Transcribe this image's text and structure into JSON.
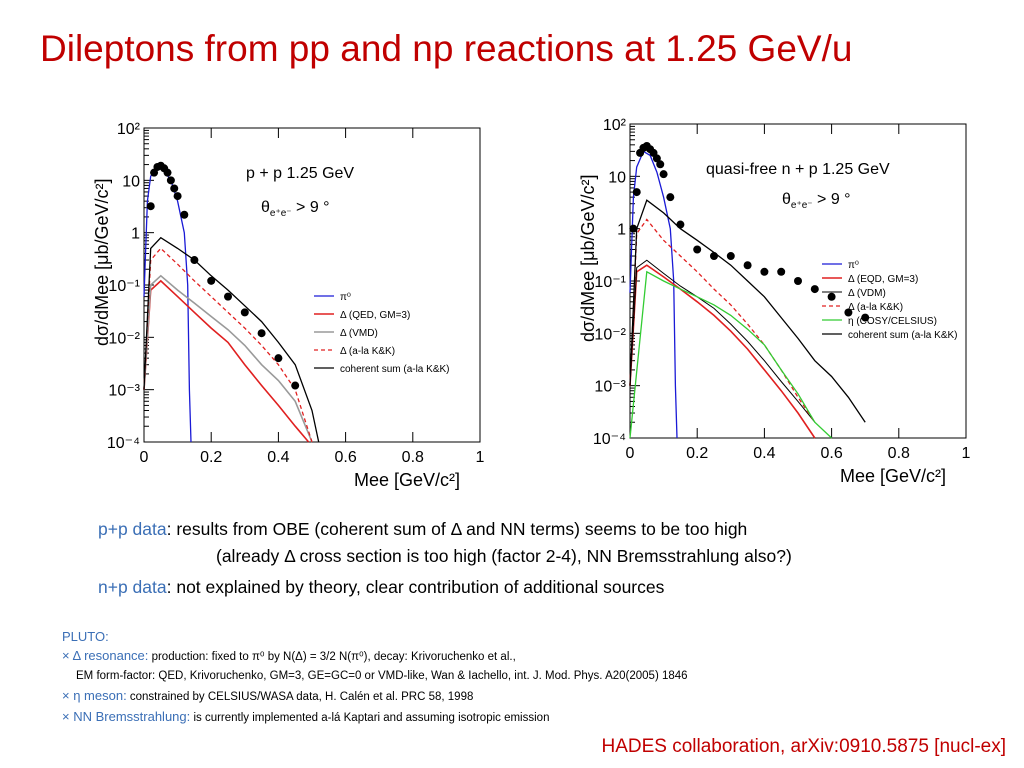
{
  "slide": {
    "title": "Dileptons from pp and np reactions at 1.25 GeV/u"
  },
  "colors": {
    "title": "#c00000",
    "accent_blue": "#3b6fb6",
    "pi0": "#1a1ad6",
    "delta_qed": "#e02020",
    "delta_vdm": "#9a9a9a",
    "delta_alakk": "#e02020",
    "eta": "#33cc33",
    "coherent": "#000000"
  },
  "left_plot": {
    "annotation1": "p + p  1.25 GeV",
    "annotation2_theta": "θ",
    "annotation2_sub": "e⁺e⁻",
    "annotation2_rest": " > 9 °",
    "ylabel": "dσ/dMee [μb/GeV/c²]",
    "xlabel": "Mee [GeV/c²]",
    "xticks": [
      "0",
      "0.2",
      "0.4",
      "0.6",
      "0.8",
      "1"
    ],
    "yticks": [
      "10²",
      "10",
      "1",
      "10⁻¹",
      "10⁻²",
      "10⁻³",
      "10⁻⁴"
    ],
    "legend": [
      "π⁰",
      "Δ (QED, GM=3)",
      "Δ (VMD)",
      "Δ (a-la K&K)",
      "coherent sum (a-la K&K)"
    ]
  },
  "right_plot": {
    "annotation1": "quasi-free n + p  1.25 GeV",
    "annotation2_theta": "θ",
    "annotation2_sub": "e⁺e⁻",
    "annotation2_rest": " > 9 °",
    "ylabel": "dσ/dMee [μb/GeV/c²]",
    "xlabel": "Mee [GeV/c²]",
    "xticks": [
      "0",
      "0.2",
      "0.4",
      "0.6",
      "0.8",
      "1"
    ],
    "yticks": [
      "10²",
      "10",
      "1",
      "10⁻¹",
      "10⁻²",
      "10⁻³",
      "10⁻⁴"
    ],
    "legend": [
      "π⁰",
      "Δ (EQD, GM=3)",
      "Δ (VDM)",
      "Δ (a-la K&K)",
      "η (COSY/CELSIUS)",
      "coherent sum (a-la K&K)"
    ]
  },
  "chart_data": [
    {
      "type": "scatter",
      "title": "p + p 1.25 GeV",
      "xlabel": "Mee [GeV/c²]",
      "ylabel": "dσ/dMee [μb/GeV/c²]",
      "xlim": [
        0,
        1
      ],
      "ylim": [
        0.0001,
        100
      ],
      "yscale": "log",
      "series": [
        {
          "name": "data",
          "x": [
            0.02,
            0.03,
            0.04,
            0.05,
            0.06,
            0.07,
            0.08,
            0.09,
            0.1,
            0.12,
            0.15,
            0.2,
            0.25,
            0.3,
            0.35,
            0.4,
            0.45
          ],
          "y": [
            3.2,
            14,
            18,
            19,
            17,
            14,
            10,
            7,
            5,
            2.2,
            0.3,
            0.12,
            0.06,
            0.03,
            0.012,
            0.004,
            0.0012
          ]
        },
        {
          "name": "π⁰",
          "x": [
            0.0,
            0.01,
            0.02,
            0.04,
            0.06,
            0.08,
            0.1,
            0.12,
            0.13,
            0.135,
            0.14
          ],
          "y": [
            0.06,
            4,
            12,
            18,
            15,
            10,
            4,
            1,
            0.1,
            0.001,
            0.0001
          ]
        },
        {
          "name": "Δ (QED, GM=3)",
          "x": [
            0.0,
            0.02,
            0.05,
            0.1,
            0.15,
            0.2,
            0.25,
            0.3,
            0.35,
            0.4,
            0.45,
            0.49
          ],
          "y": [
            0.001,
            0.08,
            0.12,
            0.06,
            0.03,
            0.015,
            0.008,
            0.003,
            0.0012,
            0.0005,
            0.0002,
            0.0001
          ]
        },
        {
          "name": "Δ (VMD)",
          "x": [
            0.0,
            0.02,
            0.05,
            0.1,
            0.15,
            0.2,
            0.25,
            0.3,
            0.35,
            0.4,
            0.45,
            0.5
          ],
          "y": [
            0.001,
            0.1,
            0.15,
            0.08,
            0.045,
            0.025,
            0.014,
            0.007,
            0.003,
            0.0015,
            0.0006,
            0.0001
          ]
        },
        {
          "name": "Δ (a-la K&K)",
          "x": [
            0.0,
            0.02,
            0.05,
            0.1,
            0.15,
            0.2,
            0.25,
            0.3,
            0.35,
            0.4,
            0.45,
            0.5
          ],
          "y": [
            0.001,
            0.3,
            0.5,
            0.25,
            0.12,
            0.06,
            0.03,
            0.015,
            0.007,
            0.003,
            0.001,
            0.0001
          ]
        },
        {
          "name": "coherent sum (a-la K&K)",
          "x": [
            0.0,
            0.02,
            0.05,
            0.1,
            0.15,
            0.2,
            0.25,
            0.3,
            0.35,
            0.4,
            0.45,
            0.5,
            0.52
          ],
          "y": [
            0.001,
            0.5,
            0.8,
            0.5,
            0.3,
            0.15,
            0.08,
            0.04,
            0.02,
            0.008,
            0.003,
            0.0004,
            0.0001
          ]
        }
      ]
    },
    {
      "type": "scatter",
      "title": "quasi-free n + p 1.25 GeV",
      "xlabel": "Mee [GeV/c²]",
      "ylabel": "dσ/dMee [μb/GeV/c²]",
      "xlim": [
        0,
        1
      ],
      "ylim": [
        0.0001,
        100
      ],
      "yscale": "log",
      "series": [
        {
          "name": "data",
          "x": [
            0.01,
            0.02,
            0.03,
            0.04,
            0.05,
            0.06,
            0.07,
            0.08,
            0.09,
            0.1,
            0.12,
            0.15,
            0.2,
            0.25,
            0.3,
            0.35,
            0.4,
            0.45,
            0.5,
            0.55,
            0.6,
            0.65,
            0.7
          ],
          "y": [
            1,
            5,
            28,
            35,
            38,
            33,
            28,
            22,
            17,
            11,
            4,
            1.2,
            0.4,
            0.3,
            0.3,
            0.2,
            0.15,
            0.15,
            0.1,
            0.07,
            0.05,
            0.025,
            0.02
          ]
        },
        {
          "name": "π⁰",
          "x": [
            0.0,
            0.01,
            0.02,
            0.04,
            0.06,
            0.08,
            0.1,
            0.12,
            0.13,
            0.135,
            0.14
          ],
          "y": [
            0.06,
            4,
            15,
            30,
            25,
            12,
            4,
            1,
            0.1,
            0.001,
            0.0001
          ]
        },
        {
          "name": "Δ (EQD, GM=3)",
          "x": [
            0.0,
            0.02,
            0.05,
            0.1,
            0.15,
            0.2,
            0.25,
            0.3,
            0.35,
            0.4,
            0.45,
            0.5,
            0.55
          ],
          "y": [
            0.001,
            0.15,
            0.2,
            0.12,
            0.07,
            0.04,
            0.022,
            0.011,
            0.005,
            0.002,
            0.0008,
            0.0003,
            0.0001
          ]
        },
        {
          "name": "Δ (VDM)",
          "x": [
            0.0,
            0.02,
            0.05,
            0.1,
            0.15,
            0.2,
            0.25,
            0.3,
            0.35,
            0.4,
            0.45,
            0.5,
            0.55
          ],
          "y": [
            0.001,
            0.18,
            0.25,
            0.14,
            0.08,
            0.05,
            0.03,
            0.015,
            0.007,
            0.003,
            0.0012,
            0.0005,
            0.0002
          ]
        },
        {
          "name": "Δ (a-la K&K)",
          "x": [
            0.0,
            0.02,
            0.05,
            0.1,
            0.15,
            0.2,
            0.25,
            0.3,
            0.35,
            0.4,
            0.45,
            0.5,
            0.55
          ],
          "y": [
            0.001,
            0.8,
            1.5,
            0.6,
            0.3,
            0.15,
            0.07,
            0.035,
            0.015,
            0.006,
            0.002,
            0.0006,
            0.0002
          ]
        },
        {
          "name": "η (COSY/CELSIUS)",
          "x": [
            0.0,
            0.05,
            0.1,
            0.15,
            0.2,
            0.25,
            0.3,
            0.35,
            0.4,
            0.45,
            0.5,
            0.55,
            0.6
          ],
          "y": [
            0.0001,
            0.15,
            0.1,
            0.07,
            0.05,
            0.035,
            0.022,
            0.012,
            0.006,
            0.002,
            0.0007,
            0.0002,
            0.0001
          ]
        },
        {
          "name": "coherent sum (a-la K&K)",
          "x": [
            0.0,
            0.02,
            0.05,
            0.1,
            0.15,
            0.2,
            0.25,
            0.3,
            0.35,
            0.4,
            0.45,
            0.5,
            0.55,
            0.6,
            0.65,
            0.7
          ],
          "y": [
            0.001,
            1,
            3.5,
            2,
            1,
            0.6,
            0.35,
            0.2,
            0.1,
            0.05,
            0.02,
            0.008,
            0.003,
            0.0015,
            0.0006,
            0.0002
          ]
        }
      ]
    }
  ],
  "bullets": {
    "pp_label": "p+p data",
    "pp_text": ": results from OBE (coherent sum of Δ and NN terms) seems to be too high",
    "pp_text2": "(already Δ cross section is too high (factor 2-4), NN Bremsstrahlung also?)",
    "np_label": "n+p data",
    "np_text": ": not explained by theory, clear contribution of additional sources"
  },
  "notes": {
    "head": "PLUTO:",
    "n1_label": "× Δ resonance:",
    "n1_text": " production: fixed to π⁰ by N(Δ) = 3/2 N(π⁰), decay: Krivoruchenko et al.,",
    "n1_text2": "EM form-factor: QED, Krivoruchenko,  GM=3, GE=GC=0 or  VMD-like, Wan & Iachello, int. J. Mod. Phys. A20(2005) 1846",
    "n2_label": "× η meson:",
    "n2_text": " constrained by CELSIUS/WASA data, H. Calén et al. PRC 58, 1998",
    "n3_label": "× NN Bremsstrahlung:",
    "n3_text": " is currently implemented a-lá Kaptari and assuming isotropic emission"
  },
  "citation": "HADES collaboration, arXiv:0910.5875 [nucl-ex]"
}
